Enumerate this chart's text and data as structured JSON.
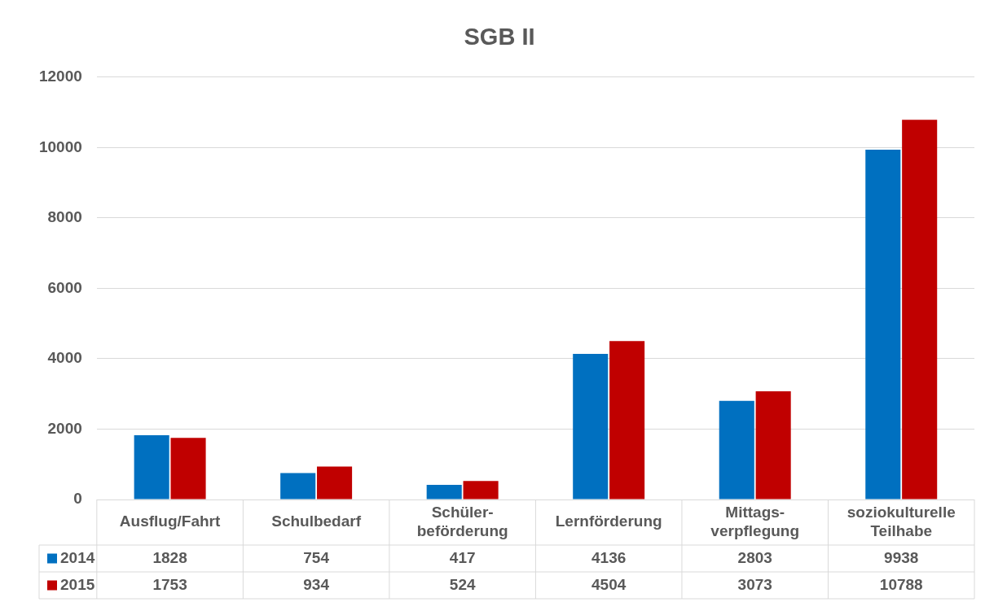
{
  "chart_data": {
    "type": "bar",
    "title": "SGB II",
    "categories": [
      "Ausflug/Fahrt",
      "Schulbedarf",
      "Schüler-\nbeförderung",
      "Lernförderung",
      "Mittags-\nverpflegung",
      "soziokulturelle\nTeilhabe"
    ],
    "series": [
      {
        "name": "2014",
        "color": "#0070c0",
        "values": [
          1828,
          754,
          417,
          4136,
          2803,
          9938
        ]
      },
      {
        "name": "2015",
        "color": "#c00000",
        "values": [
          1753,
          934,
          524,
          4504,
          3073,
          10788
        ]
      }
    ],
    "ylim": [
      0,
      12000
    ],
    "yticks": [
      0,
      2000,
      4000,
      6000,
      8000,
      10000,
      12000
    ],
    "grid": "y",
    "legend": "bottom",
    "data_labels": true
  }
}
